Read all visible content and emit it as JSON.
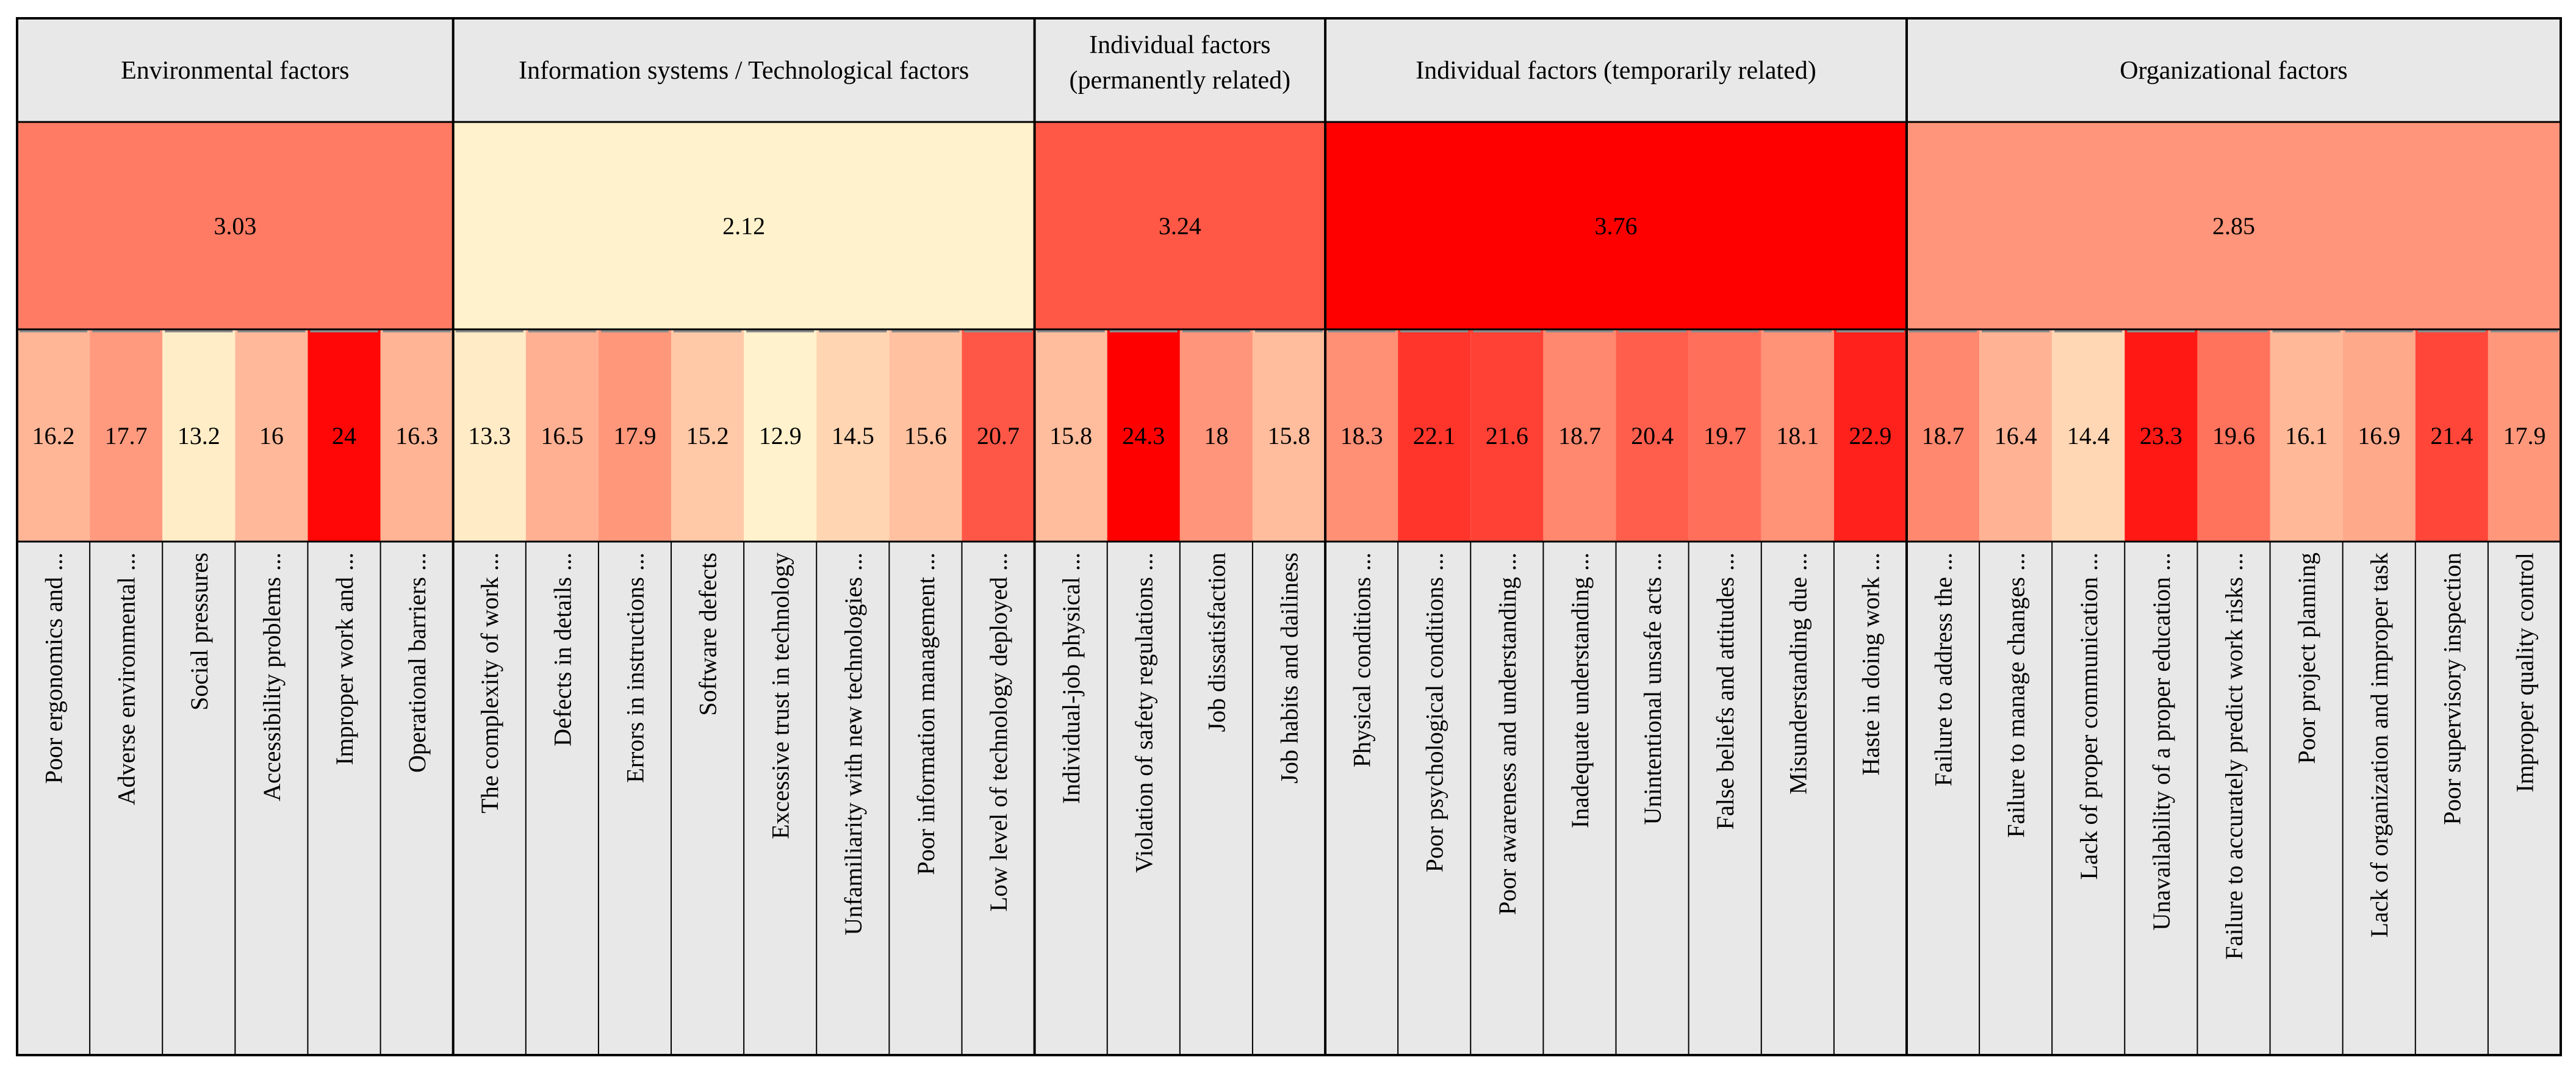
{
  "chart_data": {
    "type": "heatmap",
    "title": "",
    "color_scale": {
      "low": "#fff2cc",
      "mid": "#ff8a70",
      "high": "#ff0000"
    },
    "group_scale": [
      2.12,
      3.76
    ],
    "item_scale": [
      12.9,
      24.3
    ],
    "groups": [
      {
        "name": "Environmental factors",
        "value": 3.03,
        "items": [
          {
            "label": "Poor ergonomics and ...",
            "value": 16.2
          },
          {
            "label": "Adverse environmental ...",
            "value": 17.7
          },
          {
            "label": "Social pressures",
            "value": 13.2
          },
          {
            "label": "Accessibility problems ...",
            "value": 16
          },
          {
            "label": "Improper work and ...",
            "value": 24
          },
          {
            "label": "Operational barriers ...",
            "value": 16.3
          }
        ]
      },
      {
        "name": "Information systems / Technological factors",
        "value": 2.12,
        "items": [
          {
            "label": "The complexity of work ...",
            "value": 13.3
          },
          {
            "label": "Defects in details ...",
            "value": 16.5
          },
          {
            "label": "Errors in instructions ...",
            "value": 17.9
          },
          {
            "label": "Software defects",
            "value": 15.2
          },
          {
            "label": "Excessive trust in technology",
            "value": 12.9
          },
          {
            "label": "Unfamiliarity with new technologies ...",
            "value": 14.5
          },
          {
            "label": "Poor information management ...",
            "value": 15.6
          },
          {
            "label": "Low level of technology deployed ...",
            "value": 20.7
          }
        ]
      },
      {
        "name": "Individual factors (permanently related)",
        "name_lines": [
          "Individual factors",
          "(permanently related)"
        ],
        "value": 3.24,
        "items": [
          {
            "label": "Individual-job physical ...",
            "value": 15.8
          },
          {
            "label": "Violation of safety regulations ...",
            "value": 24.3
          },
          {
            "label": "Job dissatisfaction",
            "value": 18
          },
          {
            "label": "Job habits and dailiness",
            "value": 15.8
          }
        ]
      },
      {
        "name": "Individual factors (temporarily related)",
        "value": 3.76,
        "items": [
          {
            "label": "Physical conditions ...",
            "value": 18.3
          },
          {
            "label": "Poor psychological conditions ...",
            "value": 22.1
          },
          {
            "label": "Poor awareness and understanding ...",
            "value": 21.6
          },
          {
            "label": "Inadequate understanding ...",
            "value": 18.7
          },
          {
            "label": "Unintentional unsafe acts ...",
            "value": 20.4
          },
          {
            "label": "False beliefs and attitudes ...",
            "value": 19.7
          },
          {
            "label": "Misunderstanding due ...",
            "value": 18.1
          },
          {
            "label": "Haste in doing work ...",
            "value": 22.9
          }
        ]
      },
      {
        "name": "Organizational factors",
        "value": 2.85,
        "items": [
          {
            "label": "Failure to address the ...",
            "value": 18.7
          },
          {
            "label": "Failure to manage changes ...",
            "value": 16.4
          },
          {
            "label": "Lack of proper communication ...",
            "value": 14.4
          },
          {
            "label": "Unavailability of a proper education ...",
            "value": 23.3
          },
          {
            "label": "Failure to accurately predict work risks ...",
            "value": 19.6
          },
          {
            "label": "Poor project planning",
            "value": 16.1
          },
          {
            "label": "Lack of organization and improper task",
            "value": 16.9
          },
          {
            "label": "Poor supervisory inspection",
            "value": 21.4
          },
          {
            "label": "Improper quality control",
            "value": 17.9
          }
        ]
      }
    ]
  }
}
